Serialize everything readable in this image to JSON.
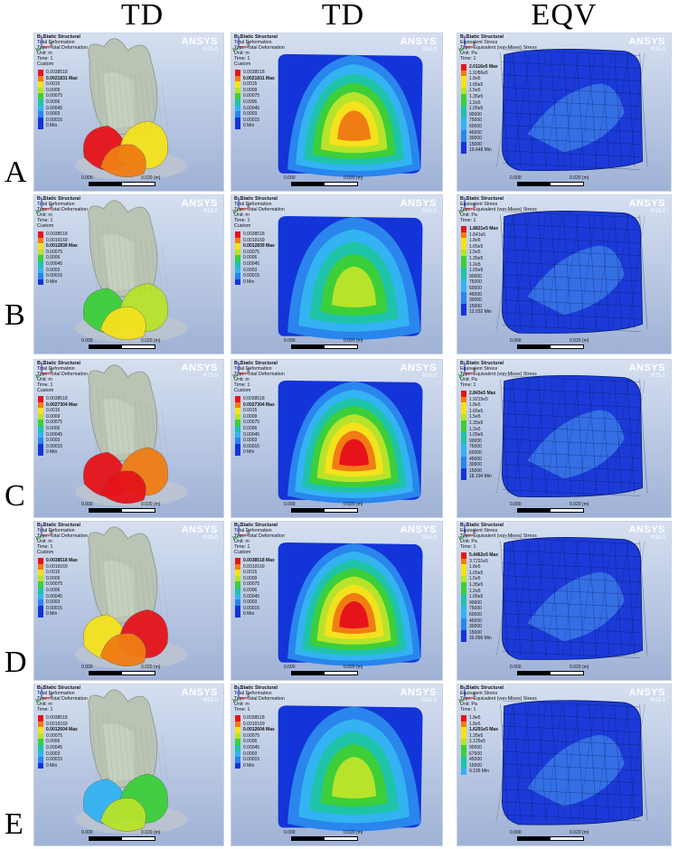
{
  "column_headers": [
    "TD",
    "TD",
    "EQV"
  ],
  "row_labels": [
    "A",
    "B",
    "C",
    "D",
    "E"
  ],
  "brand": {
    "name": "ANSYS",
    "version": "R15.0"
  },
  "scale_bar": {
    "start": "0.000",
    "end": "0.020 (m)"
  },
  "axis_letters": {
    "x": "X",
    "y": "Y",
    "z": "Z"
  },
  "colors": {
    "red": "#e6141a",
    "orange": "#f07d14",
    "yellow": "#f4e21d",
    "yellow_green": "#b8e32b",
    "green": "#3ccf3a",
    "teal": "#1fc3a8",
    "cyan": "#33b3f2",
    "light_blue": "#2a85ec",
    "blue": "#1334d8",
    "bg_top": "#d5dff0",
    "bg_bottom": "#9fb2d6"
  },
  "panels": [
    {
      "title": [
        "B: Static Structural",
        "Total Deformation",
        "Type: Total Deformation",
        "Unit: m",
        "Time: 1",
        "Custom"
      ],
      "legend": [
        "0.0038518",
        "0.0021831 Max",
        "0.0015",
        "0.0009",
        "0.00075",
        "0.0006",
        "0.00045",
        "0.0003",
        "0.00015",
        "0 Min"
      ],
      "max_index": 1
    },
    {
      "title": [
        "B: Static Structural",
        "Total Deformation",
        "Type: Total Deformation",
        "Unit: m",
        "Time: 1",
        "Custom"
      ],
      "legend": [
        "0.0038518",
        "0.0021831 Max",
        "0.0015",
        "0.0009",
        "0.00075",
        "0.0006",
        "0.00045",
        "0.0003",
        "0.00015",
        "0 Min"
      ],
      "max_index": 1
    },
    {
      "title": [
        "B: Static Structural",
        "Equivalent Stress",
        "Type: Equivalent (von-Mises) Stress",
        "Unit: Pa",
        "Time: 1"
      ],
      "legend": [
        "2.0116e5 Max",
        "1.9286e5",
        "1.8e5",
        "1.65e5",
        "1.5e5",
        "1.35e5",
        "1.2e5",
        "1.05e5",
        "90000",
        "75000",
        "60000",
        "45000",
        "30000",
        "15000",
        "19.648 Min"
      ],
      "max_index": 0
    },
    {
      "title": [
        "B: Static Structural",
        "Total Deformation",
        "Type: Total Deformation",
        "Unit: m",
        "Time: 1",
        "Custom"
      ],
      "legend": [
        "0.0038518",
        "0.0019169",
        "0.0012839 Max",
        "0.00075",
        "0.0006",
        "0.00045",
        "0.0003",
        "0.00015",
        "0 Min"
      ],
      "max_index": 2
    },
    {
      "title": [
        "B: Static Structural",
        "Total Deformation",
        "Type: Total Deformation",
        "Unit: m",
        "Time: 1",
        "Custom"
      ],
      "legend": [
        "0.0038518",
        "0.0019169",
        "0.0012839 Max",
        "0.00075",
        "0.0006",
        "0.00045",
        "0.0003",
        "0.00015",
        "0 Min"
      ],
      "max_index": 2
    },
    {
      "title": [
        "B: Static Structural",
        "Equivalent Stress",
        "Type: Equivalent (von-Mises) Stress",
        "Unit: Pa",
        "Time: 1"
      ],
      "legend": [
        "1.8821e5 Max",
        "1.841e5",
        "1.8e5",
        "1.65e5",
        "1.5e5",
        "1.35e5",
        "1.2e5",
        "1.05e5",
        "90000",
        "75000",
        "60000",
        "45000",
        "30000",
        "15000",
        "12.032 Min"
      ],
      "max_index": 0
    },
    {
      "title": [
        "B: Static Structural",
        "Total Deformation",
        "Type: Total Deformation",
        "Unit: m",
        "Time: 1",
        "Custom"
      ],
      "legend": [
        "0.0038518",
        "0.0027304 Max",
        "0.0015",
        "0.0009",
        "0.00075",
        "0.0006",
        "0.00045",
        "0.0003",
        "0.00015",
        "0 Min"
      ],
      "max_index": 1
    },
    {
      "title": [
        "B: Static Structural",
        "Total Deformation",
        "Type: Total Deformation",
        "Unit: m",
        "Time: 1",
        "Custom"
      ],
      "legend": [
        "0.0038518",
        "0.0027304 Max",
        "0.0015",
        "0.0009",
        "0.00075",
        "0.0006",
        "0.00045",
        "0.0003",
        "0.00015",
        "0 Min"
      ],
      "max_index": 1
    },
    {
      "title": [
        "B: Static Structural",
        "Equivalent Stress",
        "Type: Equivalent (von-Mises) Stress",
        "Unit: Pa",
        "Time: 1"
      ],
      "legend": [
        "2.843e5 Max",
        "1.9215e5",
        "1.8e5",
        "1.65e5",
        "1.5e5",
        "1.35e5",
        "1.2e5",
        "1.05e5",
        "90000",
        "75000",
        "60000",
        "45000",
        "30000",
        "15000",
        "18.194 Min"
      ],
      "max_index": 0
    },
    {
      "title": [
        "B: Static Structural",
        "Total Deformation",
        "Type: Total Deformation",
        "Unit: m",
        "Time: 1",
        "Custom"
      ],
      "legend": [
        "0.0038518 Max",
        "0.0019169",
        "0.0015",
        "0.0009",
        "0.00075",
        "0.0006",
        "0.00045",
        "0.0003",
        "0.00015",
        "0 Min"
      ],
      "max_index": 0
    },
    {
      "title": [
        "B: Static Structural",
        "Total Deformation",
        "Type: Total Deformation",
        "Unit: m",
        "Time: 1",
        "Custom"
      ],
      "legend": [
        "0.0038518 Max",
        "0.0019169",
        "0.0015",
        "0.0009",
        "0.00075",
        "0.0006",
        "0.00045",
        "0.0003",
        "0.00015",
        "0 Min"
      ],
      "max_index": 0
    },
    {
      "title": [
        "B: Static Structural",
        "Equivalent Stress",
        "Type: Equivalent (von-Mises) Stress",
        "Unit: Pa",
        "Time: 1"
      ],
      "legend": [
        "5.4462e5 Max",
        "3.7231e5",
        "1.8e5",
        "1.65e5",
        "1.5e5",
        "1.35e5",
        "1.2e5",
        "1.05e5",
        "90000",
        "75000",
        "60000",
        "45000",
        "30000",
        "15000",
        "36.096 Min"
      ],
      "max_index": 0
    },
    {
      "title": [
        "B: Static Structural",
        "Total Deformation",
        "Type: Total Deformation",
        "Unit: m",
        "Time: 1"
      ],
      "legend": [
        "0.0038518",
        "0.0019169",
        "0.0012604 Max",
        "0.00075",
        "0.0006",
        "0.00045",
        "0.0003",
        "0.00015",
        "0 Min"
      ],
      "max_index": 2
    },
    {
      "title": [
        "B: Static Structural",
        "Total Deformation",
        "Type: Total Deformation",
        "Unit: m",
        "Time: 1"
      ],
      "legend": [
        "0.0038518",
        "0.0019169",
        "0.0012604 Max",
        "0.00075",
        "0.0006",
        "0.00045",
        "0.0003",
        "0.00015",
        "0 Min"
      ],
      "max_index": 2
    },
    {
      "title": [
        "B: Static Structural",
        "Equivalent Stress",
        "Type: Equivalent (von-Mises) Stress",
        "Unit: Pa",
        "Time: 1"
      ],
      "legend": [
        "1.8e5",
        "1.8e5",
        "1.6291e5 Max",
        "1.35e5",
        "1.125e5",
        "90000",
        "67500",
        "45000",
        "15000",
        "9.195 Min"
      ],
      "max_index": 2
    }
  ]
}
